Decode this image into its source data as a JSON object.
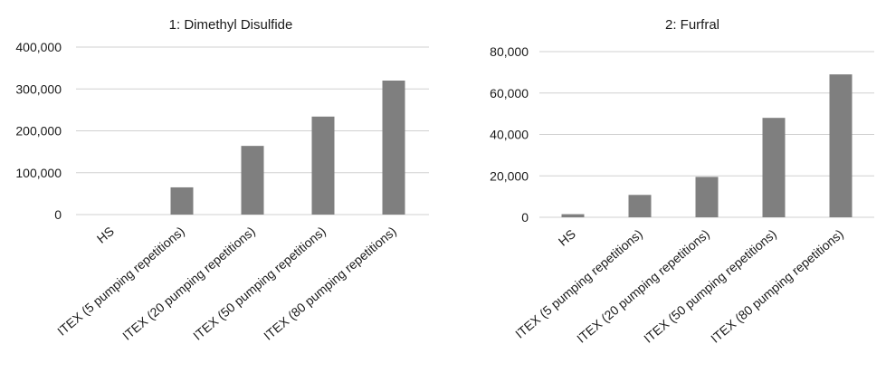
{
  "chart_data": [
    {
      "type": "bar",
      "title": "1: Dimethyl Disulfide",
      "categories": [
        "HS",
        "ITEX (5 pumping repetitions)",
        "ITEX (20 pumping repetitions)",
        "ITEX (50 pumping repetitions)",
        "ITEX (80 pumping repetitions)"
      ],
      "values": [
        0,
        65000,
        164000,
        234000,
        320000
      ],
      "ylim": [
        0,
        400000
      ],
      "yticks": [
        "0",
        "100,000",
        "200,000",
        "300,000",
        "400,000"
      ],
      "ytick_values": [
        0,
        100000,
        200000,
        300000,
        400000
      ],
      "grid": true,
      "bar_color": "#7f7f7f"
    },
    {
      "type": "bar",
      "title": "2:  Furfral",
      "categories": [
        "HS",
        "ITEX (5 pumping repetitions)",
        "ITEX (20 pumping repetitions)",
        "ITEX (50 pumping repetitions)",
        "ITEX (80 pumping repetitions)"
      ],
      "values": [
        1500,
        10800,
        19500,
        48000,
        69000
      ],
      "ylim": [
        0,
        80000
      ],
      "yticks": [
        "0",
        "20,000",
        "40,000",
        "60,000",
        "80,000"
      ],
      "ytick_values": [
        0,
        20000,
        40000,
        60000,
        80000
      ],
      "grid": true,
      "bar_color": "#7f7f7f"
    }
  ]
}
